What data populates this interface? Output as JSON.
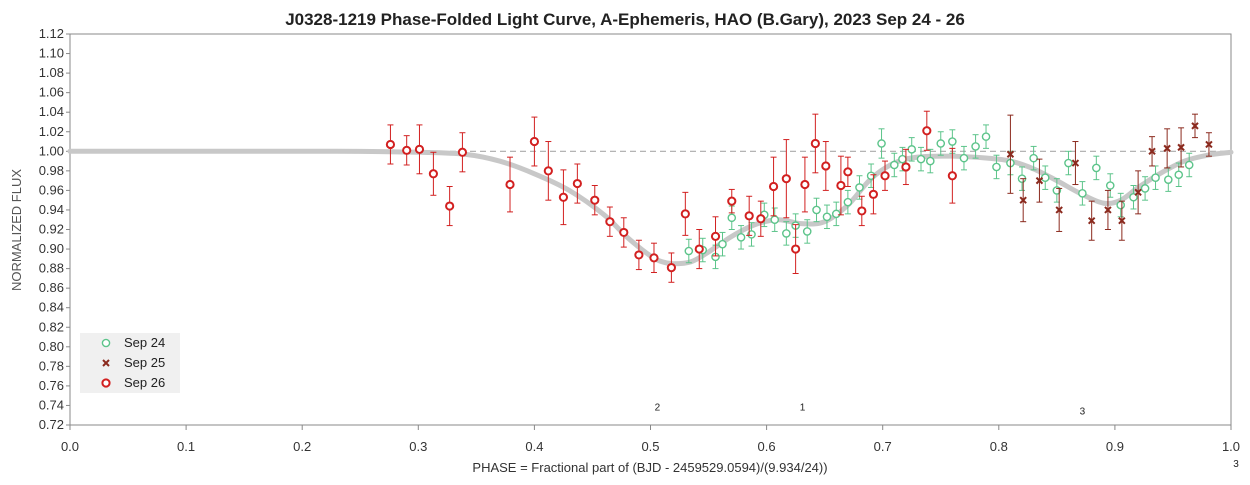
{
  "chart_data": {
    "type": "scatter",
    "title": "J0328-1219 Phase-Folded Light Curve, A-Ephemeris, HAO (B.Gary), 2023 Sep 24 - 26",
    "xlabel": "PHASE = Fractional part of (BJD - 2459529.0594)/(9.934/24))",
    "ylabel": "NORMALIZED FLUX",
    "xlim": [
      0.0,
      1.0
    ],
    "ylim": [
      0.72,
      1.12
    ],
    "x_ticks": [
      "0.0",
      "0.1",
      "0.2",
      "0.3",
      "0.4",
      "0.5",
      "0.6",
      "0.7",
      "0.8",
      "0.9",
      "1.0"
    ],
    "y_ticks": [
      "0.72",
      "0.74",
      "0.76",
      "0.78",
      "0.80",
      "0.82",
      "0.84",
      "0.86",
      "0.88",
      "0.90",
      "0.92",
      "0.94",
      "0.96",
      "0.98",
      "1.00",
      "1.02",
      "1.04",
      "1.06",
      "1.08",
      "1.10",
      "1.12"
    ],
    "grid": "none",
    "reference_line_y": 1.0,
    "legend_position": "bottom-left",
    "colors": {
      "sep24": "#5cc48a",
      "sep25": "#8b2a1e",
      "sep26": "#d22020",
      "model": "#c8c8c8",
      "reference": "#aaaaaa"
    },
    "series": [
      {
        "name": "Sep 24",
        "marker": "circle-open",
        "x": [
          0.533,
          0.545,
          0.556,
          0.562,
          0.57,
          0.578,
          0.587,
          0.598,
          0.607,
          0.617,
          0.625,
          0.635,
          0.643,
          0.652,
          0.66,
          0.67,
          0.68,
          0.69,
          0.699,
          0.71,
          0.717,
          0.725,
          0.733,
          0.741,
          0.75,
          0.76,
          0.77,
          0.78,
          0.789,
          0.798,
          0.81,
          0.82,
          0.83,
          0.84,
          0.85,
          0.86,
          0.872,
          0.884,
          0.896,
          0.905,
          0.916,
          0.926,
          0.935,
          0.946,
          0.955,
          0.964
        ],
        "y": [
          0.898,
          0.899,
          0.892,
          0.905,
          0.932,
          0.912,
          0.915,
          0.935,
          0.93,
          0.916,
          0.924,
          0.918,
          0.94,
          0.933,
          0.936,
          0.948,
          0.963,
          0.975,
          1.008,
          0.986,
          0.992,
          1.002,
          0.992,
          0.99,
          1.008,
          1.01,
          0.993,
          1.005,
          1.015,
          0.984,
          0.988,
          0.972,
          0.993,
          0.973,
          0.96,
          0.988,
          0.957,
          0.983,
          0.965,
          0.945,
          0.953,
          0.962,
          0.973,
          0.971,
          0.976,
          0.986
        ],
        "err": [
          0.012,
          0.012,
          0.012,
          0.012,
          0.012,
          0.012,
          0.012,
          0.012,
          0.012,
          0.012,
          0.012,
          0.012,
          0.012,
          0.012,
          0.012,
          0.012,
          0.012,
          0.012,
          0.015,
          0.012,
          0.012,
          0.012,
          0.012,
          0.012,
          0.012,
          0.012,
          0.012,
          0.012,
          0.012,
          0.012,
          0.012,
          0.012,
          0.012,
          0.012,
          0.012,
          0.012,
          0.012,
          0.012,
          0.012,
          0.012,
          0.012,
          0.012,
          0.012,
          0.012,
          0.012,
          0.012
        ]
      },
      {
        "name": "Sep 25",
        "marker": "x",
        "x": [
          0.81,
          0.821,
          0.835,
          0.852,
          0.866,
          0.88,
          0.894,
          0.906,
          0.92,
          0.932,
          0.945,
          0.957,
          0.969,
          0.981
        ],
        "y": [
          0.997,
          0.95,
          0.97,
          0.94,
          0.988,
          0.929,
          0.94,
          0.929,
          0.958,
          1.0,
          1.003,
          1.004,
          1.026,
          1.007
        ],
        "err": [
          0.04,
          0.022,
          0.022,
          0.022,
          0.022,
          0.02,
          0.02,
          0.02,
          0.022,
          0.015,
          0.02,
          0.02,
          0.012,
          0.012
        ]
      },
      {
        "name": "Sep 26",
        "marker": "circle-open",
        "x": [
          0.276,
          0.29,
          0.301,
          0.313,
          0.327,
          0.338,
          0.379,
          0.4,
          0.412,
          0.425,
          0.437,
          0.452,
          0.465,
          0.477,
          0.49,
          0.503,
          0.518,
          0.53,
          0.542,
          0.556,
          0.57,
          0.585,
          0.595,
          0.606,
          0.617,
          0.625,
          0.633,
          0.642,
          0.651,
          0.664,
          0.67,
          0.682,
          0.692,
          0.702,
          0.72,
          0.738,
          0.76
        ],
        "y": [
          1.007,
          1.001,
          1.002,
          0.977,
          0.944,
          0.999,
          0.966,
          1.01,
          0.98,
          0.953,
          0.967,
          0.95,
          0.928,
          0.917,
          0.894,
          0.891,
          0.881,
          0.936,
          0.9,
          0.913,
          0.949,
          0.934,
          0.931,
          0.964,
          0.972,
          0.9,
          0.966,
          1.008,
          0.985,
          0.965,
          0.979,
          0.939,
          0.956,
          0.975,
          0.984,
          1.021,
          0.975
        ],
        "err": [
          0.02,
          0.015,
          0.025,
          0.022,
          0.02,
          0.02,
          0.028,
          0.025,
          0.03,
          0.028,
          0.02,
          0.015,
          0.015,
          0.015,
          0.015,
          0.015,
          0.015,
          0.022,
          0.02,
          0.02,
          0.012,
          0.02,
          0.018,
          0.03,
          0.04,
          0.025,
          0.028,
          0.03,
          0.025,
          0.03,
          0.015,
          0.015,
          0.02,
          0.015,
          0.018,
          0.02,
          0.028
        ]
      }
    ],
    "model_curve": {
      "name": "model",
      "x": [
        0.0,
        0.23,
        0.3,
        0.34,
        0.37,
        0.4,
        0.43,
        0.46,
        0.48,
        0.5,
        0.51,
        0.52,
        0.535,
        0.55,
        0.57,
        0.59,
        0.61,
        0.63,
        0.65,
        0.67,
        0.69,
        0.71,
        0.73,
        0.76,
        0.79,
        0.81,
        0.83,
        0.85,
        0.87,
        0.89,
        0.905,
        0.92,
        0.94,
        0.96,
        0.98,
        1.0
      ],
      "y": [
        1.0,
        1.0,
        0.999,
        0.997,
        0.99,
        0.977,
        0.96,
        0.935,
        0.912,
        0.893,
        0.887,
        0.885,
        0.887,
        0.897,
        0.913,
        0.925,
        0.93,
        0.926,
        0.928,
        0.945,
        0.972,
        0.988,
        0.994,
        0.995,
        0.993,
        0.99,
        0.982,
        0.97,
        0.957,
        0.947,
        0.95,
        0.963,
        0.978,
        0.99,
        0.996,
        0.999
      ]
    },
    "annotations": [
      {
        "text": "2",
        "x": 0.506,
        "y": 0.737
      },
      {
        "text": "1",
        "x": 0.631,
        "y": 0.737
      },
      {
        "text": "3",
        "x": 0.872,
        "y": 0.733
      }
    ],
    "corner_annotation": "3"
  }
}
